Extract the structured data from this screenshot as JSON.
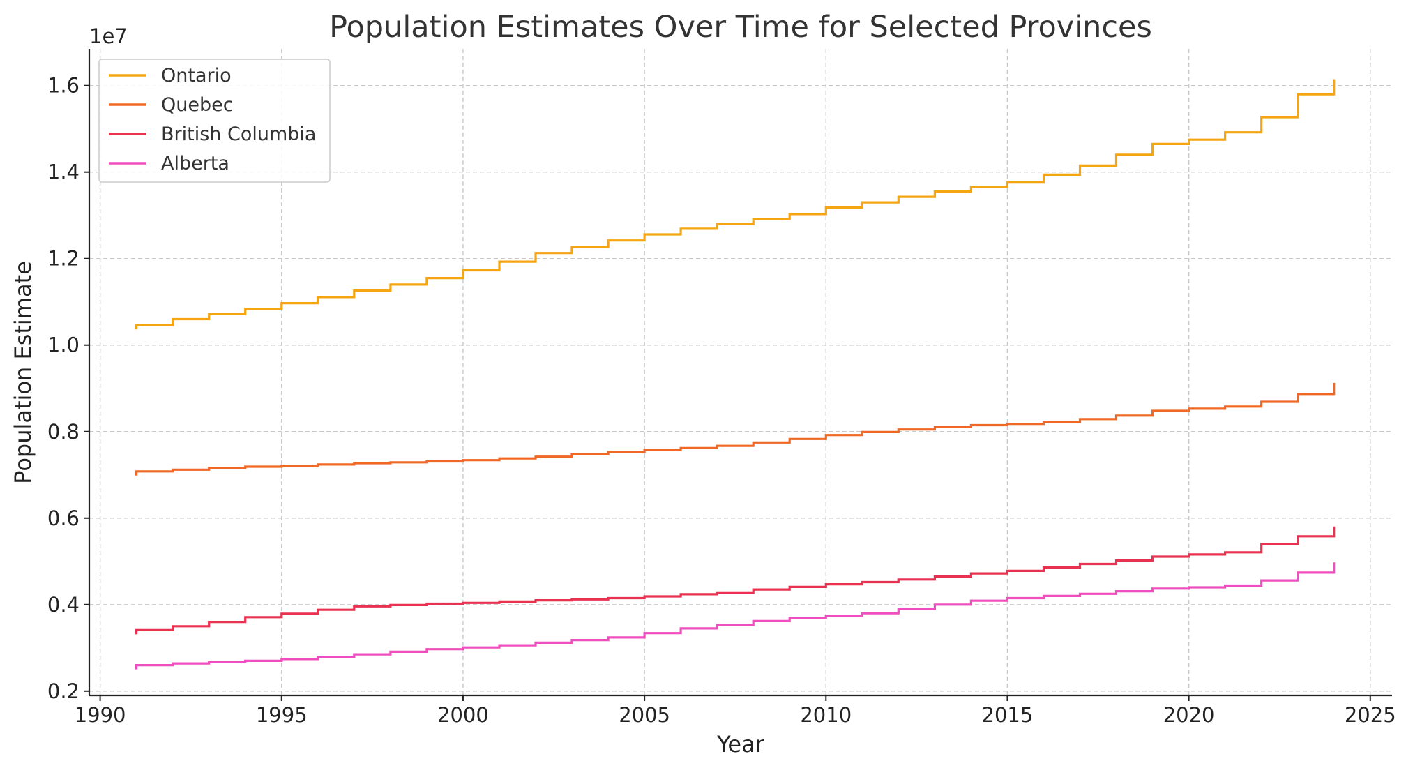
{
  "chart_data": {
    "type": "line",
    "title": "Population Estimates Over Time for Selected Provinces",
    "xlabel": "Year",
    "ylabel": "Population Estimate",
    "y_offset_label": "1e7",
    "xlim": [
      1989.7,
      2025.6
    ],
    "ylim": [
      0.19,
      1.685
    ],
    "x_ticks": [
      1990,
      1995,
      2000,
      2005,
      2010,
      2015,
      2020,
      2025
    ],
    "x_tick_labels": [
      "1990",
      "1995",
      "2000",
      "2005",
      "2010",
      "2015",
      "2020",
      "2025"
    ],
    "y_ticks": [
      0.2,
      0.4,
      0.6,
      0.8,
      1.0,
      1.2,
      1.4,
      1.6
    ],
    "y_tick_labels": [
      "0.2",
      "0.4",
      "0.6",
      "0.8",
      "1.0",
      "1.2",
      "1.4",
      "1.6"
    ],
    "grid": true,
    "legend_position": "top-left",
    "step": true,
    "x": [
      1991,
      1992,
      1993,
      1994,
      1995,
      1996,
      1997,
      1998,
      1999,
      2000,
      2001,
      2002,
      2003,
      2004,
      2005,
      2006,
      2007,
      2008,
      2009,
      2010,
      2011,
      2012,
      2013,
      2014,
      2015,
      2016,
      2017,
      2018,
      2019,
      2020,
      2021,
      2022,
      2023,
      2024
    ],
    "series": [
      {
        "name": "Ontario",
        "color": "#f5a511",
        "values": [
          1.046,
          1.06,
          1.072,
          1.084,
          1.097,
          1.111,
          1.126,
          1.14,
          1.155,
          1.173,
          1.193,
          1.213,
          1.227,
          1.242,
          1.256,
          1.269,
          1.28,
          1.291,
          1.303,
          1.318,
          1.33,
          1.343,
          1.355,
          1.366,
          1.376,
          1.394,
          1.415,
          1.44,
          1.465,
          1.475,
          1.492,
          1.527,
          1.58,
          1.597
        ]
      },
      {
        "name": "Quebec",
        "color": "#f06825",
        "values": [
          0.708,
          0.712,
          0.716,
          0.719,
          0.721,
          0.724,
          0.727,
          0.729,
          0.731,
          0.734,
          0.738,
          0.742,
          0.748,
          0.753,
          0.757,
          0.762,
          0.767,
          0.775,
          0.783,
          0.792,
          0.799,
          0.805,
          0.811,
          0.815,
          0.818,
          0.822,
          0.829,
          0.837,
          0.848,
          0.853,
          0.858,
          0.869,
          0.887,
          0.895
        ]
      },
      {
        "name": "British Columbia",
        "color": "#e83250",
        "values": [
          0.341,
          0.35,
          0.36,
          0.371,
          0.379,
          0.388,
          0.396,
          0.399,
          0.402,
          0.404,
          0.407,
          0.41,
          0.412,
          0.415,
          0.419,
          0.424,
          0.428,
          0.435,
          0.441,
          0.447,
          0.452,
          0.458,
          0.465,
          0.472,
          0.478,
          0.486,
          0.494,
          0.502,
          0.511,
          0.516,
          0.521,
          0.54,
          0.558,
          0.563
        ]
      },
      {
        "name": "Alberta",
        "color": "#ef4fbe",
        "values": [
          0.26,
          0.264,
          0.267,
          0.27,
          0.274,
          0.279,
          0.285,
          0.291,
          0.297,
          0.301,
          0.306,
          0.312,
          0.318,
          0.324,
          0.334,
          0.345,
          0.353,
          0.362,
          0.369,
          0.374,
          0.38,
          0.39,
          0.4,
          0.409,
          0.415,
          0.42,
          0.425,
          0.431,
          0.437,
          0.44,
          0.444,
          0.456,
          0.474,
          0.48
        ]
      }
    ]
  }
}
